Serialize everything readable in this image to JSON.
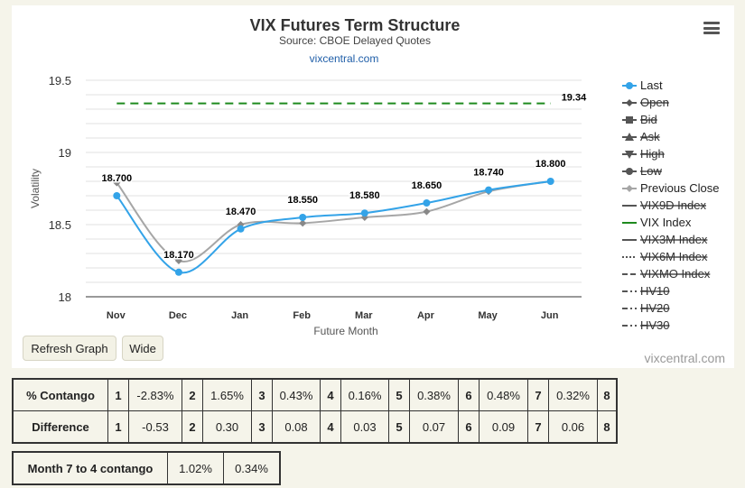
{
  "chart_data": {
    "type": "line",
    "title": "VIX Futures Term Structure",
    "subtitle": "Source: CBOE Delayed Quotes",
    "source_link": "vixcentral.com",
    "credit": "vixcentral.com",
    "xlabel": "Future Month",
    "ylabel": "Volatility",
    "categories": [
      "Nov",
      "Dec",
      "Jan",
      "Feb",
      "Mar",
      "Apr",
      "May",
      "Jun"
    ],
    "ylim": [
      18,
      19.5
    ],
    "yticks": [
      "18",
      "18.5",
      "19",
      "19.5"
    ],
    "series": [
      {
        "name": "Last",
        "values": [
          18.7,
          18.17,
          18.47,
          18.55,
          18.58,
          18.65,
          18.74,
          18.8
        ],
        "labels": [
          "18.700",
          "18.170",
          "18.470",
          "18.550",
          "18.580",
          "18.650",
          "18.740",
          "18.800"
        ],
        "color": "#33a3e8"
      },
      {
        "name": "Previous Close",
        "values": [
          18.79,
          18.25,
          18.5,
          18.51,
          18.55,
          18.59,
          18.73,
          18.8
        ],
        "color": "#a6a6a6"
      },
      {
        "name": "VIX Index",
        "value": 19.34,
        "label": "19.34",
        "color": "#1e8a1e"
      }
    ],
    "legend": {
      "placement": "right",
      "items": [
        {
          "name": "Last",
          "active": true,
          "symbol": "circle",
          "color": "#33a3e8"
        },
        {
          "name": "Open",
          "active": false,
          "symbol": "diamond",
          "color": "#555555"
        },
        {
          "name": "Bid",
          "active": false,
          "symbol": "square",
          "color": "#555555"
        },
        {
          "name": "Ask",
          "active": false,
          "symbol": "triangle",
          "color": "#555555"
        },
        {
          "name": "High",
          "active": false,
          "symbol": "triangle-down",
          "color": "#555555"
        },
        {
          "name": "Low",
          "active": false,
          "symbol": "circle",
          "color": "#555555"
        },
        {
          "name": "Previous Close",
          "active": true,
          "symbol": "diamond",
          "color": "#a6a6a6"
        },
        {
          "name": "VIX9D Index",
          "active": false,
          "symbol": "solid",
          "color": "#555555"
        },
        {
          "name": "VIX Index",
          "active": true,
          "symbol": "solid",
          "color": "#1e8a1e"
        },
        {
          "name": "VIX3M Index",
          "active": false,
          "symbol": "solid",
          "color": "#555555"
        },
        {
          "name": "VIX6M Index",
          "active": false,
          "symbol": "dotted",
          "color": "#555555"
        },
        {
          "name": "VIXMO Index",
          "active": false,
          "symbol": "dashed",
          "color": "#555555"
        },
        {
          "name": "HV10",
          "active": false,
          "symbol": "dashdot",
          "color": "#555555"
        },
        {
          "name": "HV20",
          "active": false,
          "symbol": "dashdot",
          "color": "#555555"
        },
        {
          "name": "HV30",
          "active": false,
          "symbol": "dashdot",
          "color": "#555555"
        }
      ]
    },
    "grid": true
  },
  "buttons": {
    "refresh": "Refresh Graph",
    "wide": "Wide"
  },
  "contango_table": {
    "rows": [
      {
        "label": "% Contango",
        "cells": [
          [
            "1",
            "-2.83%"
          ],
          [
            "2",
            "1.65%"
          ],
          [
            "3",
            "0.43%"
          ],
          [
            "4",
            "0.16%"
          ],
          [
            "5",
            "0.38%"
          ],
          [
            "6",
            "0.48%"
          ],
          [
            "7",
            "0.32%"
          ],
          [
            "8",
            ""
          ]
        ]
      },
      {
        "label": "Difference",
        "cells": [
          [
            "1",
            "-0.53"
          ],
          [
            "2",
            "0.30"
          ],
          [
            "3",
            "0.08"
          ],
          [
            "4",
            "0.03"
          ],
          [
            "5",
            "0.07"
          ],
          [
            "6",
            "0.09"
          ],
          [
            "7",
            "0.06"
          ],
          [
            "8",
            ""
          ]
        ]
      }
    ]
  },
  "month74": {
    "label": "Month 7 to 4 contango",
    "v1": "1.02%",
    "v2": "0.34%"
  }
}
